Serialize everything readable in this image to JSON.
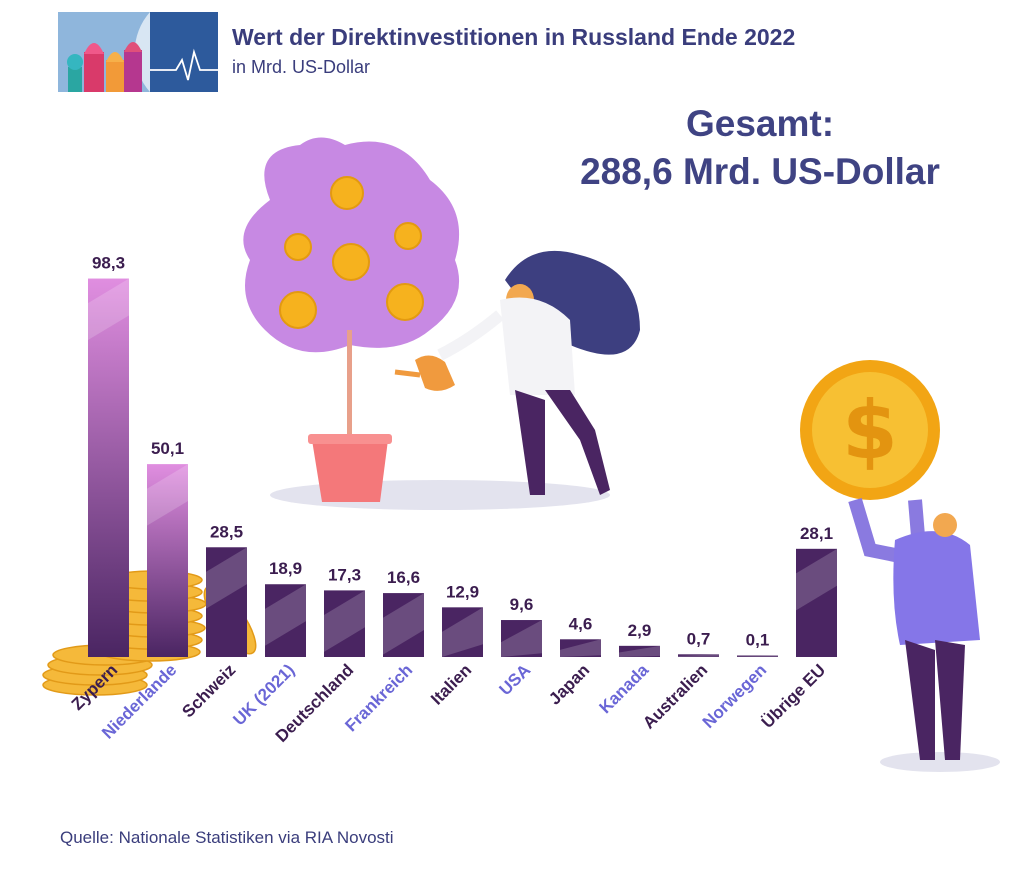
{
  "header": {
    "title": "Wert der Direktinvestitionen in Russland Ende 2022",
    "subtitle": "in Mrd. US-Dollar"
  },
  "total": {
    "label": "Gesamt:",
    "value": "288,6 Mrd. US-Dollar"
  },
  "source": "Quelle: Nationale Statistiken via RIA Novosti",
  "colors": {
    "bar_dark": "#4a2562",
    "bar_top": "#e08ee0",
    "label_dark": "#3b1d4f",
    "label_accent": "#6a66d6",
    "coin": "#f4b942"
  },
  "chart_data": {
    "type": "bar",
    "title": "Wert der Direktinvestitionen in Russland Ende 2022",
    "ylabel": "Mrd. US-Dollar",
    "ylim": [
      0,
      100
    ],
    "categories": [
      "Zypern",
      "Niederlande",
      "Schweiz",
      "UK (2021)",
      "Deutschland",
      "Frankreich",
      "Italien",
      "USA",
      "Japan",
      "Kanada",
      "Australien",
      "Norwegen",
      "Übrige EU"
    ],
    "values": [
      98.3,
      50.1,
      28.5,
      18.9,
      17.3,
      16.6,
      12.9,
      9.6,
      4.6,
      2.9,
      0.7,
      0.1,
      28.1
    ],
    "value_labels": [
      "98,3",
      "50,1",
      "28,5",
      "18,9",
      "17,3",
      "16,6",
      "12,9",
      "9,6",
      "4,6",
      "2,9",
      "0,7",
      "0,1",
      "28,1"
    ],
    "label_styles": [
      "dark",
      "accent",
      "dark",
      "accent",
      "dark",
      "accent",
      "dark",
      "accent",
      "dark",
      "accent",
      "dark",
      "accent",
      "dark"
    ]
  }
}
